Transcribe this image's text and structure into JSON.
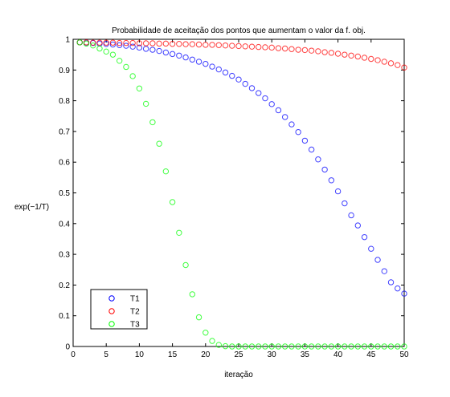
{
  "chart_data": {
    "type": "scatter",
    "title": "Probabilidade de aceitação dos pontos que aumentam o valor da f. obj.",
    "xlabel": "iteração",
    "ylabel": "exp(−1/T)",
    "xlim": [
      0,
      50
    ],
    "ylim": [
      0,
      1
    ],
    "xticks": [
      "0",
      "5",
      "10",
      "15",
      "20",
      "25",
      "30",
      "35",
      "40",
      "45",
      "50"
    ],
    "yticks": [
      "0",
      "0.1",
      "0.2",
      "0.3",
      "0.4",
      "0.5",
      "0.6",
      "0.7",
      "0.8",
      "0.9",
      "1"
    ],
    "grid": false,
    "legend_position": "bottom-left",
    "marker": "open-circle",
    "x": [
      1,
      2,
      3,
      4,
      5,
      6,
      7,
      8,
      9,
      10,
      11,
      12,
      13,
      14,
      15,
      16,
      17,
      18,
      19,
      20,
      21,
      22,
      23,
      24,
      25,
      26,
      27,
      28,
      29,
      30,
      31,
      32,
      33,
      34,
      35,
      36,
      37,
      38,
      39,
      40,
      41,
      42,
      43,
      44,
      45,
      46,
      47,
      48,
      49,
      50
    ],
    "series": [
      {
        "name": "T1",
        "color": "#0000ff",
        "values": [
          0.99,
          0.989,
          0.988,
          0.986,
          0.985,
          0.983,
          0.981,
          0.979,
          0.976,
          0.973,
          0.969,
          0.966,
          0.962,
          0.957,
          0.952,
          0.947,
          0.941,
          0.934,
          0.927,
          0.92,
          0.911,
          0.902,
          0.892,
          0.881,
          0.869,
          0.855,
          0.841,
          0.825,
          0.808,
          0.789,
          0.769,
          0.747,
          0.723,
          0.698,
          0.67,
          0.641,
          0.609,
          0.576,
          0.541,
          0.505,
          0.466,
          0.427,
          0.394,
          0.356,
          0.318,
          0.282,
          0.245,
          0.209,
          0.189,
          0.172
        ]
      },
      {
        "name": "T2",
        "color": "#ff0000",
        "values": [
          0.99,
          0.99,
          0.989,
          0.989,
          0.989,
          0.989,
          0.988,
          0.988,
          0.988,
          0.987,
          0.987,
          0.987,
          0.986,
          0.986,
          0.985,
          0.985,
          0.984,
          0.984,
          0.983,
          0.982,
          0.982,
          0.981,
          0.98,
          0.979,
          0.978,
          0.977,
          0.976,
          0.975,
          0.974,
          0.973,
          0.971,
          0.97,
          0.968,
          0.966,
          0.965,
          0.963,
          0.961,
          0.958,
          0.956,
          0.953,
          0.95,
          0.947,
          0.944,
          0.94,
          0.936,
          0.932,
          0.927,
          0.922,
          0.916,
          0.908
        ]
      },
      {
        "name": "T3",
        "color": "#00ff00",
        "values": [
          0.99,
          0.986,
          0.98,
          0.97,
          0.96,
          0.95,
          0.93,
          0.91,
          0.88,
          0.84,
          0.79,
          0.73,
          0.66,
          0.57,
          0.47,
          0.37,
          0.265,
          0.17,
          0.095,
          0.045,
          0.018,
          0.005,
          0.001,
          0,
          0,
          0,
          0,
          0,
          0,
          0,
          0,
          0,
          0,
          0,
          0,
          0,
          0,
          0,
          0,
          0,
          0,
          0,
          0,
          0,
          0,
          0,
          0,
          0,
          0,
          0
        ]
      }
    ]
  }
}
